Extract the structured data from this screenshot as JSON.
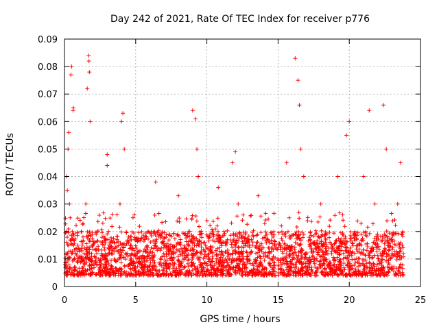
{
  "chart_data": {
    "type": "scatter",
    "title": "Day 242 of 2021, Rate Of TEC Index for receiver p776",
    "xlabel": "GPS time / hours",
    "ylabel": "ROTI / TECUs",
    "xlim": [
      0,
      25
    ],
    "ylim": [
      0,
      0.09
    ],
    "x_ticks": [
      0,
      5,
      10,
      15,
      20,
      25
    ],
    "x_tick_labels": [
      "0",
      "5",
      "10",
      "15",
      "20",
      "25"
    ],
    "y_ticks": [
      0,
      0.01,
      0.02,
      0.03,
      0.04,
      0.05,
      0.06,
      0.07,
      0.08,
      0.09
    ],
    "y_tick_labels": [
      "0",
      "0.01",
      "0.02",
      "0.03",
      "0.04",
      "0.05",
      "0.06",
      "0.07",
      "0.08",
      "0.09"
    ],
    "grid": true,
    "legend": "none",
    "marker": "+",
    "marker_color": "#ff0000",
    "series": [
      {
        "name": "ROTI",
        "x": [
          0.05,
          0.1,
          0.15,
          0.2,
          0.25,
          0.3,
          0.3,
          0.35,
          0.4,
          0.45,
          0.5,
          0.55,
          0.6,
          0.62,
          0.65,
          0.7,
          0.8,
          0.9,
          1.0,
          1.1,
          1.2,
          1.3,
          1.4,
          1.5,
          1.6,
          1.7,
          1.72,
          1.75,
          1.8,
          1.9,
          2.0,
          2.1,
          2.2,
          2.4,
          2.6,
          2.8,
          3.0,
          3.0,
          3.1,
          3.3,
          3.5,
          3.7,
          3.9,
          4.0,
          4.1,
          4.2,
          4.3,
          4.5,
          4.7,
          5.0,
          5.3,
          5.6,
          6.0,
          6.4,
          6.8,
          7.0,
          7.3,
          7.6,
          8.0,
          8.4,
          8.8,
          9.0,
          9.2,
          9.3,
          9.4,
          9.6,
          10.0,
          10.4,
          10.8,
          11.2,
          11.5,
          11.8,
          12.0,
          12.2,
          12.5,
          12.8,
          13.2,
          13.6,
          14.0,
          14.4,
          14.8,
          15.2,
          15.6,
          16.0,
          16.2,
          16.4,
          16.5,
          16.6,
          16.8,
          17.2,
          17.6,
          18.0,
          18.4,
          18.8,
          19.2,
          19.6,
          19.8,
          20.0,
          20.4,
          20.8,
          21.0,
          21.4,
          21.8,
          22.2,
          22.4,
          22.6,
          23.0,
          23.4,
          23.6,
          23.8
        ],
        "y": [
          0.008,
          0.012,
          0.04,
          0.035,
          0.05,
          0.056,
          0.015,
          0.03,
          0.025,
          0.077,
          0.08,
          0.02,
          0.064,
          0.065,
          0.015,
          0.01,
          0.012,
          0.009,
          0.014,
          0.011,
          0.02,
          0.018,
          0.014,
          0.03,
          0.072,
          0.084,
          0.082,
          0.078,
          0.06,
          0.012,
          0.015,
          0.011,
          0.009,
          0.01,
          0.012,
          0.008,
          0.048,
          0.044,
          0.02,
          0.012,
          0.01,
          0.013,
          0.03,
          0.06,
          0.063,
          0.05,
          0.012,
          0.016,
          0.01,
          0.011,
          0.013,
          0.009,
          0.012,
          0.038,
          0.014,
          0.011,
          0.012,
          0.01,
          0.033,
          0.012,
          0.02,
          0.064,
          0.061,
          0.05,
          0.04,
          0.012,
          0.014,
          0.011,
          0.036,
          0.02,
          0.012,
          0.045,
          0.049,
          0.03,
          0.012,
          0.01,
          0.015,
          0.033,
          0.011,
          0.012,
          0.014,
          0.01,
          0.045,
          0.012,
          0.083,
          0.075,
          0.066,
          0.05,
          0.04,
          0.01,
          0.015,
          0.03,
          0.012,
          0.014,
          0.04,
          0.012,
          0.055,
          0.06,
          0.02,
          0.012,
          0.04,
          0.064,
          0.03,
          0.012,
          0.066,
          0.05,
          0.012,
          0.03,
          0.045,
          0.012
        ]
      }
    ]
  }
}
